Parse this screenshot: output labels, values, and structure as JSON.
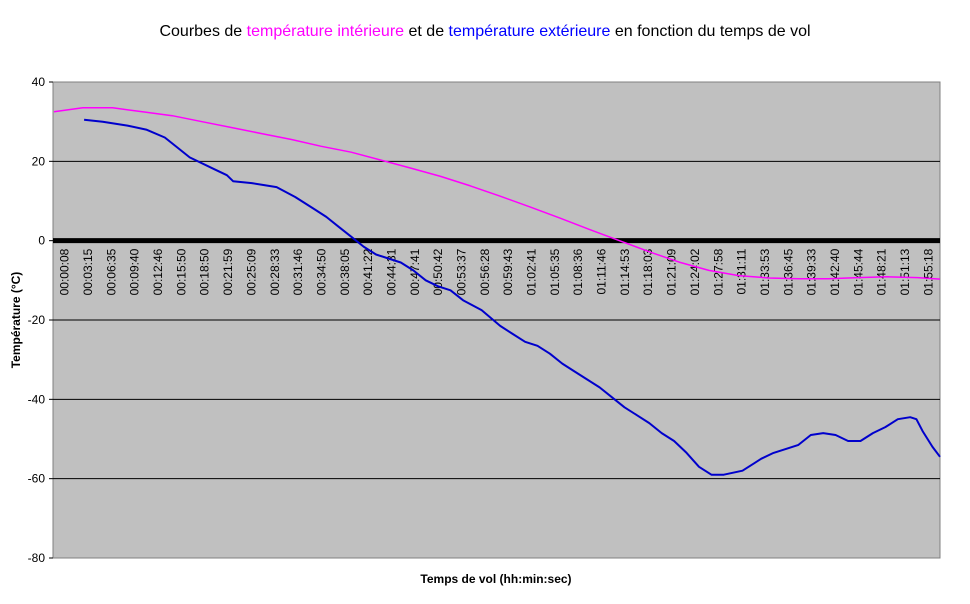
{
  "chart_data": {
    "type": "line",
    "title_parts": [
      {
        "text": "Courbes de ",
        "color": "#000000"
      },
      {
        "text": "température intérieure",
        "color": "#ff00ff"
      },
      {
        "text": " et de ",
        "color": "#000000"
      },
      {
        "text": "température extérieure",
        "color": "#0000ff"
      },
      {
        "text": " en fonction du temps de vol",
        "color": "#000000"
      }
    ],
    "xlabel": "Temps de vol (hh:min:sec)",
    "ylabel": "Température (°C)",
    "ylim": [
      -80,
      40
    ],
    "yticks": [
      40,
      20,
      0,
      -20,
      -40,
      -60,
      -80
    ],
    "xlim": [
      0,
      7140
    ],
    "x_tick_labels": [
      "00:00:08",
      "00:03:15",
      "00:06:35",
      "00:09:40",
      "00:12:46",
      "00:15:50",
      "00:18:50",
      "00:21:59",
      "00:25:09",
      "00:28:33",
      "00:31:46",
      "00:34:50",
      "00:38:05",
      "00:41:22",
      "00:44:31",
      "00:47:41",
      "00:50:42",
      "00:53:37",
      "00:56:28",
      "00:59:43",
      "01:02:41",
      "01:05:35",
      "01:08:36",
      "01:11:46",
      "01:14:53",
      "01:18:03",
      "01:21:09",
      "01:24:02",
      "01:27:58",
      "01:31:11",
      "01:33:53",
      "01:36:45",
      "01:39:33",
      "01:42:40",
      "01:45:44",
      "01:48:21",
      "01:51:13",
      "01:55:18"
    ],
    "plot_background": "#c0c0c0",
    "gridlines": true,
    "series": [
      {
        "name": "température intérieure",
        "color": "#ff00ff",
        "x": [
          8,
          240,
          480,
          720,
          960,
          1200,
          1440,
          1680,
          1920,
          2160,
          2400,
          2640,
          2880,
          3120,
          3360,
          3600,
          3840,
          4080,
          4320,
          4560,
          4800,
          5040,
          5280,
          5520,
          5760,
          6000,
          6240,
          6480,
          6720,
          6960,
          7140
        ],
        "values": [
          32.5,
          33.5,
          33.5,
          32.5,
          31.5,
          30.0,
          28.5,
          27.0,
          25.5,
          23.8,
          22.3,
          20.3,
          18.3,
          16.2,
          13.8,
          11.2,
          8.5,
          5.7,
          2.8,
          0.0,
          -2.8,
          -5.4,
          -7.5,
          -8.8,
          -9.4,
          -9.6,
          -9.6,
          -9.3,
          -9.1,
          -9.3,
          -9.7
        ]
      },
      {
        "name": "température extérieure",
        "color": "#0000cc",
        "x": [
          250,
          400,
          600,
          750,
          900,
          1000,
          1100,
          1300,
          1400,
          1450,
          1600,
          1700,
          1800,
          1950,
          2100,
          2200,
          2300,
          2400,
          2500,
          2600,
          2700,
          2800,
          2900,
          3000,
          3100,
          3200,
          3300,
          3450,
          3600,
          3700,
          3800,
          3900,
          4000,
          4100,
          4200,
          4300,
          4400,
          4500,
          4600,
          4700,
          4800,
          4900,
          5000,
          5100,
          5200,
          5300,
          5400,
          5550,
          5650,
          5700,
          5800,
          5900,
          6000,
          6100,
          6200,
          6300,
          6400,
          6500,
          6600,
          6700,
          6800,
          6900,
          6950,
          7000,
          7080,
          7140
        ],
        "values": [
          30.5,
          30.0,
          29.0,
          28.0,
          26.0,
          23.5,
          21.0,
          18.0,
          16.5,
          15.0,
          14.5,
          14.0,
          13.5,
          11.0,
          8.0,
          6.0,
          3.5,
          1.0,
          -1.5,
          -3.5,
          -4.5,
          -5.5,
          -7.5,
          -10.0,
          -11.5,
          -12.5,
          -15.0,
          -17.5,
          -21.5,
          -23.5,
          -25.5,
          -26.5,
          -28.5,
          -31.0,
          -33.0,
          -35.0,
          -37.0,
          -39.5,
          -42.0,
          -44.0,
          -46.0,
          -48.5,
          -50.5,
          -53.5,
          -57.0,
          -59.0,
          -59.0,
          -58.0,
          -56.0,
          -55.0,
          -53.5,
          -52.5,
          -51.5,
          -49.0,
          -48.5,
          -49.0,
          -50.5,
          -50.5,
          -48.5,
          -47.0,
          -45.0,
          -44.5,
          -45.0,
          -48.0,
          -52.0,
          -54.5
        ]
      }
    ]
  }
}
